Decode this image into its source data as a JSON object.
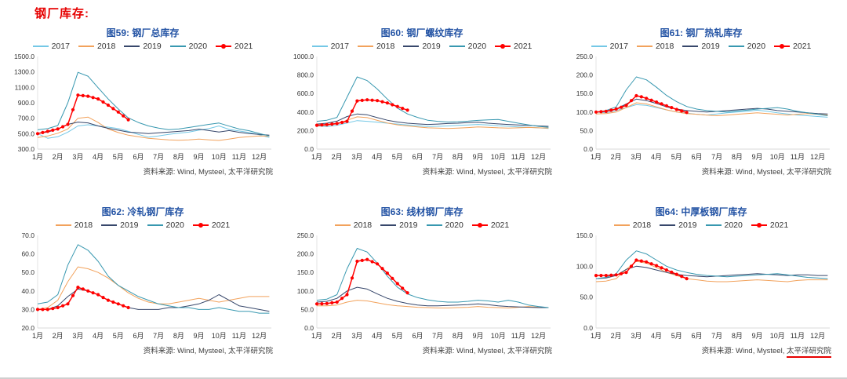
{
  "page": {
    "title": "钢厂库存:"
  },
  "source": {
    "prefix": "资料来源: Wind, Mysteel, ",
    "org": "太平洋研究院"
  },
  "colors": {
    "2017": "#74c8e6",
    "2018": "#f2a25c",
    "2019": "#37476b",
    "2020": "#3898b0",
    "2021": "#ff0000"
  },
  "months": [
    "1月",
    "2月",
    "3月",
    "4月",
    "5月",
    "6月",
    "7月",
    "8月",
    "9月",
    "10月",
    "11月",
    "12月"
  ],
  "chart_data": [
    {
      "type": "line",
      "title": "图59: 钢厂总库存",
      "xlabel": "",
      "ylabel": "",
      "ylim": [
        300,
        1500
      ],
      "yticks": [
        300,
        500,
        700,
        900,
        1100,
        1300,
        1500
      ],
      "x_step": 0.5,
      "legend_position": "top",
      "series": [
        {
          "name": "2017",
          "x_start": 1,
          "values": [
            500,
            440,
            460,
            520,
            600,
            615,
            600,
            585,
            565,
            530,
            490,
            455,
            470,
            490,
            505,
            520,
            545,
            565,
            600,
            555,
            535,
            515,
            485,
            450
          ]
        },
        {
          "name": "2018",
          "x_start": 1,
          "values": [
            450,
            470,
            505,
            560,
            700,
            715,
            645,
            560,
            515,
            480,
            460,
            440,
            430,
            420,
            415,
            420,
            430,
            420,
            412,
            430,
            450,
            462,
            470,
            468
          ]
        },
        {
          "name": "2019",
          "x_start": 1,
          "values": [
            505,
            520,
            560,
            620,
            650,
            640,
            600,
            570,
            545,
            520,
            510,
            500,
            510,
            520,
            530,
            540,
            558,
            540,
            522,
            540,
            518,
            500,
            490,
            480
          ]
        },
        {
          "name": "2020",
          "x_start": 1,
          "values": [
            550,
            565,
            605,
            900,
            1295,
            1245,
            1095,
            950,
            820,
            705,
            645,
            600,
            572,
            552,
            560,
            580,
            600,
            620,
            638,
            598,
            560,
            538,
            502,
            470
          ]
        },
        {
          "name": "2021",
          "x_start": 1,
          "x_step": 0.25,
          "marker": true,
          "values": [
            500,
            515,
            530,
            545,
            560,
            590,
            620,
            810,
            1000,
            993,
            985,
            968,
            950,
            910,
            870,
            825,
            780,
            730,
            680
          ]
        }
      ]
    },
    {
      "type": "line",
      "title": "图60: 钢厂螺纹库存",
      "xlabel": "",
      "ylabel": "",
      "ylim": [
        0,
        1000
      ],
      "yticks": [
        0,
        200,
        400,
        600,
        800,
        1000
      ],
      "x_step": 0.5,
      "legend_position": "top",
      "series": [
        {
          "name": "2017",
          "x_start": 1,
          "values": [
            250,
            242,
            258,
            282,
            308,
            300,
            290,
            280,
            270,
            260,
            252,
            244,
            246,
            250,
            256,
            260,
            266,
            260,
            252,
            246,
            240,
            236,
            230,
            222
          ]
        },
        {
          "name": "2018",
          "x_start": 1,
          "values": [
            252,
            256,
            272,
            312,
            348,
            340,
            310,
            282,
            262,
            250,
            240,
            230,
            226,
            222,
            226,
            232,
            240,
            236,
            230,
            226,
            230,
            234,
            230,
            226
          ]
        },
        {
          "name": "2019",
          "x_start": 1,
          "values": [
            270,
            280,
            302,
            352,
            380,
            370,
            340,
            312,
            292,
            280,
            272,
            266,
            270,
            276,
            280,
            286,
            290,
            280,
            272,
            266,
            260,
            256,
            250,
            246
          ]
        },
        {
          "name": "2020",
          "x_start": 1,
          "values": [
            300,
            312,
            342,
            560,
            780,
            740,
            648,
            540,
            442,
            380,
            342,
            312,
            300,
            292,
            296,
            302,
            310,
            316,
            320,
            300,
            280,
            262,
            246,
            236
          ]
        },
        {
          "name": "2021",
          "x_start": 1,
          "x_step": 0.25,
          "marker": true,
          "values": [
            258,
            261,
            264,
            270,
            276,
            288,
            300,
            410,
            520,
            526,
            532,
            528,
            524,
            511,
            498,
            479,
            460,
            440,
            420
          ]
        }
      ]
    },
    {
      "type": "line",
      "title": "图61: 钢厂热轧库存",
      "xlabel": "",
      "ylabel": "",
      "ylim": [
        0,
        250
      ],
      "yticks": [
        0,
        50,
        100,
        150,
        200,
        250
      ],
      "x_step": 0.5,
      "legend_position": "top",
      "series": [
        {
          "name": "2017",
          "x_start": 1,
          "values": [
            100,
            98,
            104,
            112,
            120,
            118,
            112,
            106,
            100,
            97,
            94,
            92,
            95,
            98,
            100,
            102,
            105,
            102,
            98,
            95,
            92,
            90,
            88,
            86
          ]
        },
        {
          "name": "2018",
          "x_start": 1,
          "values": [
            95,
            96,
            100,
            112,
            125,
            122,
            114,
            106,
            100,
            96,
            94,
            92,
            90,
            92,
            94,
            96,
            98,
            96,
            94,
            92,
            94,
            96,
            94,
            92
          ]
        },
        {
          "name": "2019",
          "x_start": 1,
          "values": [
            100,
            102,
            108,
            122,
            135,
            131,
            123,
            114,
            108,
            104,
            102,
            100,
            102,
            104,
            106,
            108,
            110,
            108,
            104,
            102,
            100,
            98,
            96,
            95
          ]
        },
        {
          "name": "2020",
          "x_start": 1,
          "values": [
            100,
            104,
            114,
            160,
            195,
            187,
            167,
            145,
            128,
            115,
            108,
            104,
            102,
            100,
            103,
            105,
            108,
            110,
            112,
            108,
            102,
            98,
            94,
            90
          ]
        },
        {
          "name": "2021",
          "x_start": 1,
          "x_step": 0.25,
          "marker": true,
          "values": [
            100,
            101,
            102,
            105,
            108,
            113,
            118,
            131,
            144,
            141,
            137,
            132,
            127,
            122,
            117,
            112,
            107,
            103,
            99
          ]
        }
      ]
    },
    {
      "type": "line",
      "title": "图62: 冷轧钢厂库存",
      "xlabel": "",
      "ylabel": "",
      "ylim": [
        20,
        70
      ],
      "yticks": [
        20,
        30,
        40,
        50,
        60,
        70
      ],
      "x_step": 0.5,
      "legend_position": "top",
      "series": [
        {
          "name": "2018",
          "x_start": 1,
          "values": [
            30,
            31,
            35,
            45,
            53,
            52,
            50,
            47,
            43,
            39,
            36,
            34,
            33,
            33,
            34,
            35,
            36,
            35,
            34,
            35,
            36,
            37,
            37,
            37
          ]
        },
        {
          "name": "2019",
          "x_start": 1,
          "values": [
            30,
            30,
            32,
            37,
            41,
            40,
            38,
            35,
            33,
            31,
            30,
            30,
            30,
            31,
            31,
            32,
            33,
            35,
            38,
            35,
            32,
            31,
            30,
            29
          ]
        },
        {
          "name": "2020",
          "x_start": 1,
          "values": [
            33,
            34,
            38,
            54,
            65,
            62,
            56,
            48,
            43,
            40,
            37,
            35,
            33,
            32,
            31,
            31,
            30,
            30,
            31,
            30,
            29,
            29,
            28,
            28
          ]
        },
        {
          "name": "2021",
          "x_start": 1,
          "x_step": 0.25,
          "marker": true,
          "values": [
            30,
            30,
            30,
            30.5,
            31,
            32,
            33,
            37.5,
            42,
            41,
            40,
            39,
            38,
            36.5,
            35,
            34,
            33,
            32,
            31
          ]
        }
      ]
    },
    {
      "type": "line",
      "title": "图63: 线材钢厂库存",
      "xlabel": "",
      "ylabel": "",
      "ylim": [
        0,
        250
      ],
      "yticks": [
        0,
        50,
        100,
        150,
        200,
        250
      ],
      "x_step": 0.5,
      "legend_position": "top",
      "series": [
        {
          "name": "2018",
          "x_start": 1,
          "values": [
            60,
            60,
            62,
            70,
            75,
            73,
            68,
            63,
            60,
            58,
            56,
            55,
            54,
            54,
            55,
            56,
            58,
            56,
            55,
            54,
            56,
            58,
            56,
            55
          ]
        },
        {
          "name": "2019",
          "x_start": 1,
          "values": [
            70,
            72,
            80,
            100,
            110,
            105,
            92,
            80,
            72,
            66,
            62,
            60,
            60,
            61,
            62,
            63,
            65,
            63,
            60,
            58,
            57,
            56,
            55,
            55
          ]
        },
        {
          "name": "2020",
          "x_start": 1,
          "values": [
            75,
            78,
            90,
            160,
            215,
            205,
            175,
            140,
            110,
            92,
            82,
            76,
            72,
            70,
            70,
            72,
            75,
            73,
            70,
            75,
            70,
            62,
            58,
            55
          ]
        },
        {
          "name": "2021",
          "x_start": 1,
          "x_step": 0.25,
          "marker": true,
          "values": [
            65,
            65.5,
            66,
            68,
            70,
            80,
            90,
            135,
            180,
            182.5,
            185,
            179,
            173,
            160.5,
            148,
            134,
            120,
            107.5,
            95
          ]
        }
      ]
    },
    {
      "type": "line",
      "title": "图64: 中厚板钢厂库存",
      "xlabel": "",
      "ylabel": "",
      "ylim": [
        0,
        150
      ],
      "yticks": [
        0,
        50,
        100,
        150
      ],
      "x_step": 0.5,
      "legend_position": "top",
      "source_underline": true,
      "series": [
        {
          "name": "2018",
          "x_start": 1,
          "values": [
            75,
            76,
            80,
            95,
            108,
            105,
            98,
            90,
            85,
            80,
            78,
            76,
            75,
            75,
            76,
            77,
            78,
            77,
            76,
            75,
            77,
            78,
            78,
            78
          ]
        },
        {
          "name": "2019",
          "x_start": 1,
          "values": [
            80,
            81,
            85,
            95,
            100,
            98,
            94,
            90,
            87,
            85,
            84,
            83,
            84,
            85,
            86,
            87,
            88,
            87,
            86,
            85,
            86,
            86,
            85,
            85
          ]
        },
        {
          "name": "2020",
          "x_start": 1,
          "values": [
            80,
            82,
            88,
            110,
            125,
            120,
            110,
            100,
            94,
            90,
            87,
            85,
            84,
            83,
            84,
            85,
            86,
            87,
            88,
            86,
            84,
            82,
            81,
            80
          ]
        },
        {
          "name": "2021",
          "x_start": 1,
          "x_step": 0.25,
          "marker": true,
          "values": [
            85,
            85,
            85,
            85.5,
            86,
            88,
            90,
            100,
            110,
            108.5,
            107,
            104,
            101,
            97.5,
            94,
            90.5,
            87,
            83.5,
            80
          ]
        }
      ]
    }
  ]
}
